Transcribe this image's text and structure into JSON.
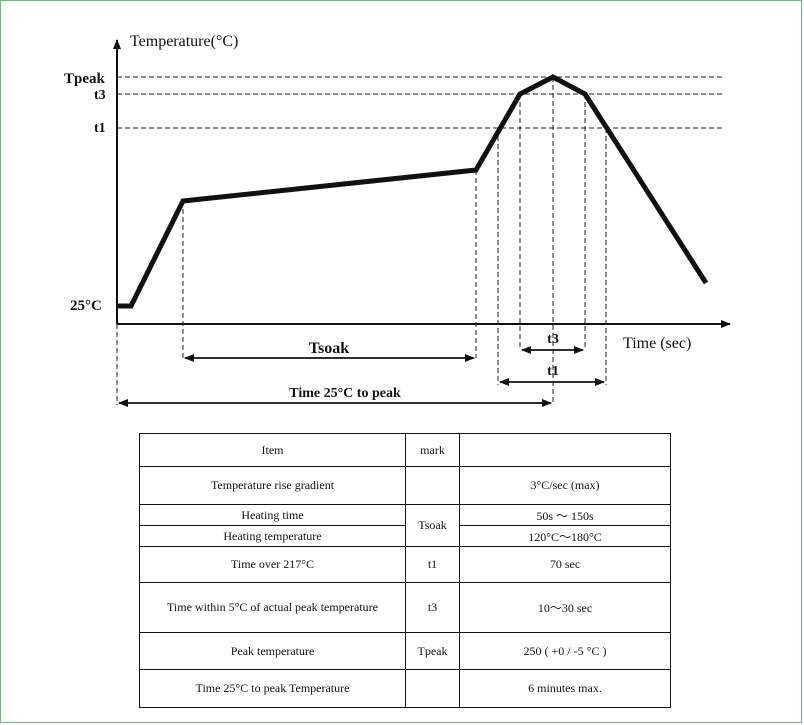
{
  "diagram": {
    "y_axis_label": "Temperature(°C)",
    "x_axis_label": "Time (sec)",
    "y_levels": [
      "Tpeak",
      "t3",
      "t1",
      "25°C"
    ],
    "spans": {
      "tsoak": "Tsoak",
      "t3": "t3",
      "t1": "t1",
      "time_to_peak": "Time 25°C to peak"
    }
  },
  "table": {
    "headers": {
      "item": "Item",
      "mark": "mark",
      "value": ""
    },
    "rows": [
      {
        "item": "Temperature rise gradient",
        "mark": "",
        "value": "3°C/sec (max)"
      },
      {
        "item": "Heating time",
        "mark": "Tsoak",
        "value": "50s ～ 150s"
      },
      {
        "item": "Heating temperature",
        "value": "120°C～180°C"
      },
      {
        "item": "Time over 217°C",
        "mark": "t1",
        "value": "70 sec"
      },
      {
        "item": "Time within 5°C of actual peak temperature",
        "mark": "t3",
        "value": "10～30 sec"
      },
      {
        "item": "Peak temperature",
        "mark": "Tpeak",
        "value": "250 ( +0 / -5 °C )"
      },
      {
        "item": "Time 25°C to peak Temperature",
        "mark": "",
        "value": "6 minutes max."
      }
    ]
  },
  "colors": {
    "border": "#6bbf6b",
    "ink": "#111111"
  }
}
